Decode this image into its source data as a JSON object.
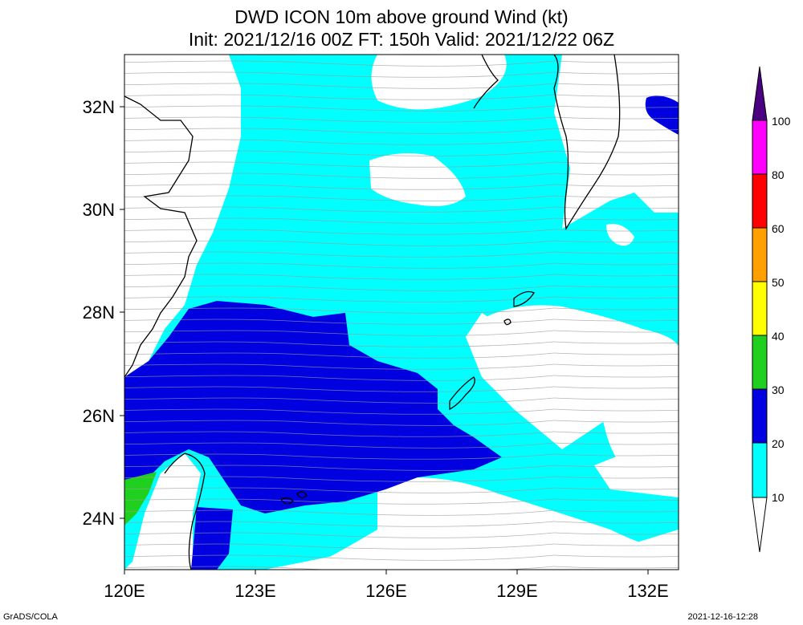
{
  "title": {
    "line1": "DWD ICON 10m above ground Wind (kt)",
    "line2": "Init: 2021/12/16 00Z  FT: 150h  Valid: 2021/12/22 06Z"
  },
  "axes": {
    "x_ticks": [
      "120E",
      "123E",
      "126E",
      "129E",
      "132E"
    ],
    "y_ticks": [
      "32N",
      "30N",
      "28N",
      "26N",
      "24N"
    ]
  },
  "colorbar": {
    "levels": [
      "10",
      "20",
      "30",
      "40",
      "50",
      "60",
      "80",
      "100"
    ],
    "colors": [
      "#00ffff",
      "#0000e0",
      "#1fd01f",
      "#ffff00",
      "#ffa000",
      "#ff0000",
      "#ff00ff",
      "#4b0082"
    ]
  },
  "map_colors": {
    "below10": "#ffffff",
    "10to20": "#00ffff",
    "20to30": "#0000e0",
    "30to40": "#1fd01f"
  },
  "footer": {
    "left": "GrADS/COLA",
    "right": "2021-12-16-12:28"
  }
}
